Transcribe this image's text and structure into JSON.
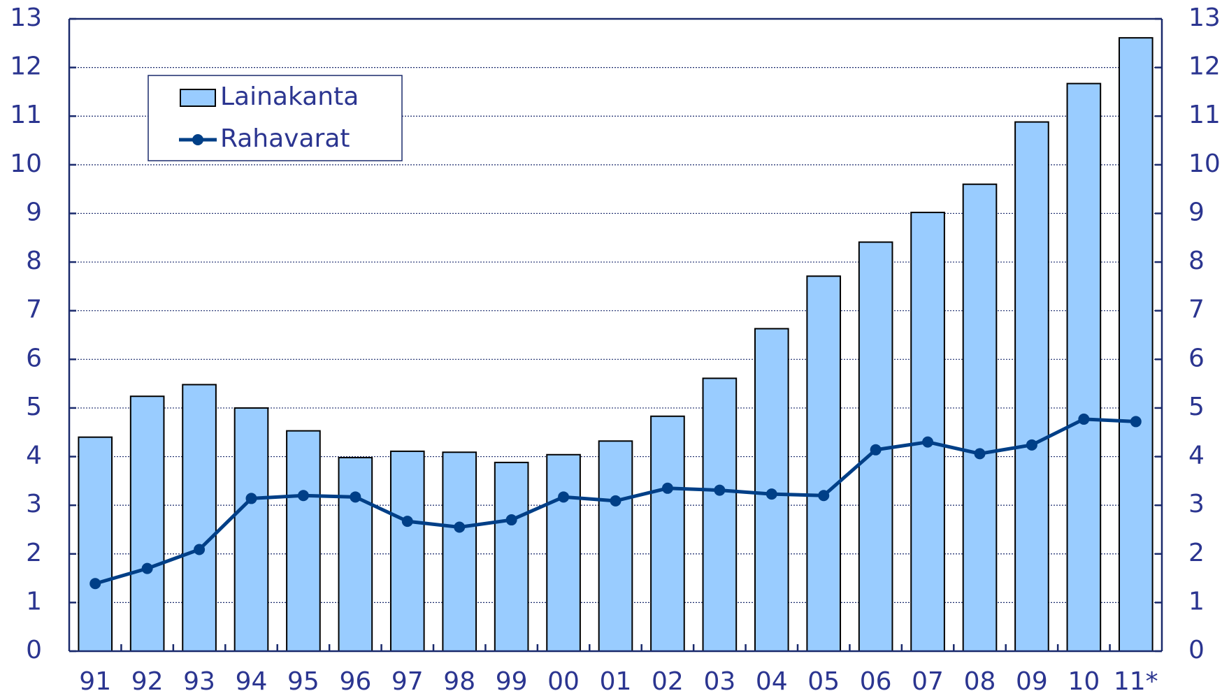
{
  "chart_data": {
    "type": "bar_line",
    "categories": [
      "91",
      "92",
      "93",
      "94",
      "95",
      "96",
      "97",
      "98",
      "99",
      "00",
      "01",
      "02",
      "03",
      "04",
      "05",
      "06",
      "07",
      "08",
      "09",
      "10",
      "11*"
    ],
    "series": [
      {
        "name": "Lainakanta",
        "type": "bar",
        "color": "#99ccff",
        "values": [
          4.4,
          5.24,
          5.48,
          5.0,
          4.53,
          3.98,
          4.11,
          4.09,
          3.88,
          4.04,
          4.32,
          4.83,
          5.61,
          6.63,
          7.71,
          8.41,
          9.02,
          9.6,
          10.88,
          11.67,
          12.61
        ]
      },
      {
        "name": "Rahavarat",
        "type": "line",
        "color": "#003f87",
        "values": [
          1.39,
          1.7,
          2.09,
          3.14,
          3.2,
          3.17,
          2.67,
          2.55,
          2.7,
          3.17,
          3.09,
          3.35,
          3.31,
          3.23,
          3.2,
          4.14,
          4.3,
          4.06,
          4.24,
          4.77,
          4.72
        ]
      }
    ],
    "ylim": [
      0,
      13
    ],
    "yticks": [
      0,
      1,
      2,
      3,
      4,
      5,
      6,
      7,
      8,
      9,
      10,
      11,
      12,
      13
    ],
    "y2lim": [
      0,
      13
    ],
    "y2ticks": [
      0,
      1,
      2,
      3,
      4,
      5,
      6,
      7,
      8,
      9,
      10,
      11,
      12,
      13
    ],
    "grid": true,
    "legend": "upper left"
  }
}
